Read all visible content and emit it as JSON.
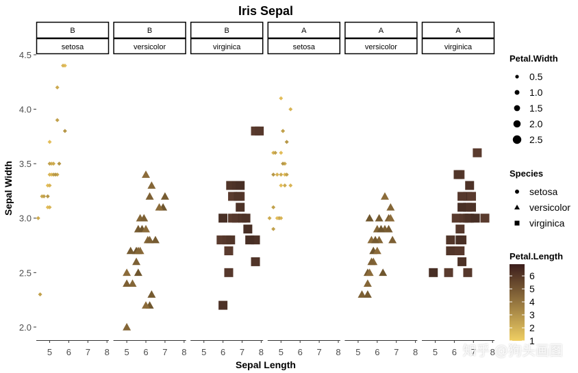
{
  "chart_data": {
    "type": "scatter",
    "title": "Iris Sepal",
    "xlabel": "Sepal Length",
    "ylabel": "Sepal Width",
    "xlim": [
      4.3,
      8.1
    ],
    "ylim": [
      1.88,
      4.5
    ],
    "x_ticks": [
      5,
      6,
      7,
      8
    ],
    "y_ticks": [
      2.0,
      2.5,
      3.0,
      3.5,
      4.0,
      4.5
    ],
    "y_tick_labels": [
      "2.0",
      "2.5",
      "3.0",
      "3.5",
      "4.0",
      "4.5"
    ],
    "facet_rows_label": [
      "B",
      "B",
      "B",
      "A",
      "A",
      "A"
    ],
    "facets": [
      {
        "group": "B",
        "species": "setosa",
        "shape": "diamond",
        "color": "#e3bd59",
        "points": [
          [
            5.8,
            4.4
          ],
          [
            5.7,
            4.4
          ],
          [
            5.4,
            4.2
          ],
          [
            5.4,
            3.9
          ],
          [
            5.8,
            3.8
          ],
          [
            5.0,
            3.7
          ],
          [
            5.1,
            3.5
          ],
          [
            5.2,
            3.5
          ],
          [
            5.0,
            3.5
          ],
          [
            5.5,
            3.5
          ],
          [
            5.1,
            3.4
          ],
          [
            5.0,
            3.4
          ],
          [
            5.4,
            3.4
          ],
          [
            5.2,
            3.4
          ],
          [
            5.3,
            3.4
          ],
          [
            4.9,
            3.3
          ],
          [
            5.0,
            3.3
          ],
          [
            4.6,
            3.2
          ],
          [
            4.7,
            3.2
          ],
          [
            4.9,
            3.2
          ],
          [
            4.9,
            3.1
          ],
          [
            5.0,
            3.1
          ],
          [
            4.4,
            3.0
          ],
          [
            4.5,
            2.3
          ]
        ]
      },
      {
        "group": "B",
        "species": "versicolor",
        "shape": "triangle",
        "color": "#8b6b3a",
        "points": [
          [
            6.0,
            3.4
          ],
          [
            6.3,
            3.3
          ],
          [
            6.2,
            3.2
          ],
          [
            7.0,
            3.2
          ],
          [
            6.9,
            3.1
          ],
          [
            6.7,
            3.1
          ],
          [
            5.7,
            3.0
          ],
          [
            5.9,
            3.0
          ],
          [
            5.6,
            2.9
          ],
          [
            5.8,
            2.9
          ],
          [
            6.0,
            2.9
          ],
          [
            6.1,
            2.8
          ],
          [
            6.2,
            2.8
          ],
          [
            6.5,
            2.8
          ],
          [
            5.5,
            2.7
          ],
          [
            5.7,
            2.7
          ],
          [
            5.6,
            2.7
          ],
          [
            5.5,
            2.6
          ],
          [
            5.2,
            2.7
          ],
          [
            5.6,
            2.5
          ],
          [
            5.0,
            2.5
          ],
          [
            5.3,
            2.4
          ],
          [
            5.0,
            2.4
          ],
          [
            6.3,
            2.3
          ],
          [
            6.2,
            2.2
          ],
          [
            6.0,
            2.2
          ],
          [
            5.0,
            2.0
          ]
        ]
      },
      {
        "group": "B",
        "species": "virginica",
        "shape": "square",
        "color": "#5a3b2e",
        "points": [
          [
            7.7,
            3.8
          ],
          [
            7.9,
            3.8
          ],
          [
            6.4,
            3.3
          ],
          [
            6.7,
            3.3
          ],
          [
            6.9,
            3.3
          ],
          [
            6.5,
            3.2
          ],
          [
            6.9,
            3.2
          ],
          [
            6.8,
            3.2
          ],
          [
            6.9,
            3.1
          ],
          [
            6.0,
            3.0
          ],
          [
            6.5,
            3.0
          ],
          [
            6.7,
            3.0
          ],
          [
            7.0,
            3.0
          ],
          [
            7.2,
            3.0
          ],
          [
            7.3,
            2.9
          ],
          [
            5.9,
            2.8
          ],
          [
            6.2,
            2.8
          ],
          [
            6.4,
            2.8
          ],
          [
            7.7,
            2.8
          ],
          [
            7.4,
            2.8
          ],
          [
            6.3,
            2.7
          ],
          [
            6.3,
            2.5
          ],
          [
            7.7,
            2.6
          ],
          [
            6.0,
            2.2
          ]
        ]
      },
      {
        "group": "A",
        "species": "setosa",
        "shape": "diamond",
        "color": "#e3bd59",
        "points": [
          [
            5.0,
            4.1
          ],
          [
            5.5,
            4.0
          ],
          [
            5.1,
            3.8
          ],
          [
            5.1,
            3.8
          ],
          [
            5.3,
            3.7
          ],
          [
            5.0,
            3.6
          ],
          [
            4.6,
            3.6
          ],
          [
            5.2,
            3.5
          ],
          [
            4.7,
            3.6
          ],
          [
            5.1,
            3.5
          ],
          [
            5.2,
            3.4
          ],
          [
            4.8,
            3.4
          ],
          [
            5.0,
            3.4
          ],
          [
            5.3,
            3.4
          ],
          [
            4.6,
            3.4
          ],
          [
            5.0,
            3.3
          ],
          [
            5.5,
            3.3
          ],
          [
            5.2,
            3.3
          ],
          [
            4.6,
            3.1
          ],
          [
            4.9,
            3.0
          ],
          [
            4.8,
            3.0
          ],
          [
            5.0,
            3.0
          ],
          [
            4.4,
            3.0
          ],
          [
            4.6,
            2.9
          ]
        ]
      },
      {
        "group": "A",
        "species": "versicolor",
        "shape": "triangle",
        "color": "#8b6b3a",
        "points": [
          [
            6.4,
            3.2
          ],
          [
            6.7,
            3.1
          ],
          [
            6.6,
            3.0
          ],
          [
            6.1,
            3.0
          ],
          [
            5.6,
            3.0
          ],
          [
            6.7,
            3.0
          ],
          [
            6.0,
            2.9
          ],
          [
            6.4,
            2.9
          ],
          [
            6.6,
            2.9
          ],
          [
            6.2,
            2.9
          ],
          [
            5.7,
            2.8
          ],
          [
            6.1,
            2.8
          ],
          [
            6.8,
            2.8
          ],
          [
            5.9,
            2.8
          ],
          [
            5.8,
            2.7
          ],
          [
            6.0,
            2.7
          ],
          [
            5.8,
            2.6
          ],
          [
            5.7,
            2.6
          ],
          [
            5.5,
            2.5
          ],
          [
            6.3,
            2.5
          ],
          [
            5.6,
            2.5
          ],
          [
            5.5,
            2.4
          ],
          [
            5.2,
            2.3
          ],
          [
            5.5,
            2.3
          ]
        ]
      },
      {
        "group": "A",
        "species": "virginica",
        "shape": "square",
        "color": "#5a3b2e",
        "points": [
          [
            7.2,
            3.6
          ],
          [
            6.3,
            3.4
          ],
          [
            6.2,
            3.4
          ],
          [
            6.8,
            3.3
          ],
          [
            6.7,
            3.2
          ],
          [
            6.9,
            3.2
          ],
          [
            6.4,
            3.2
          ],
          [
            6.7,
            3.1
          ],
          [
            6.9,
            3.1
          ],
          [
            6.4,
            3.1
          ],
          [
            6.1,
            3.0
          ],
          [
            6.5,
            3.0
          ],
          [
            6.7,
            3.0
          ],
          [
            6.8,
            3.0
          ],
          [
            7.1,
            3.0
          ],
          [
            7.6,
            3.0
          ],
          [
            6.3,
            2.9
          ],
          [
            5.8,
            2.8
          ],
          [
            6.4,
            2.8
          ],
          [
            6.3,
            2.8
          ],
          [
            6.0,
            2.7
          ],
          [
            6.3,
            2.7
          ],
          [
            5.8,
            2.7
          ],
          [
            6.4,
            2.6
          ],
          [
            4.9,
            2.5
          ],
          [
            5.7,
            2.5
          ],
          [
            6.7,
            2.5
          ]
        ]
      }
    ],
    "legend_petal_width": {
      "title": "Petal.Width",
      "labels": [
        "0.5",
        "1.0",
        "1.5",
        "2.0",
        "2.5"
      ]
    },
    "legend_species": {
      "title": "Species",
      "labels": [
        "setosa",
        "versicolor",
        "virginica"
      ]
    },
    "legend_petal_length": {
      "title": "Petal.Length",
      "labels": [
        "1",
        "2",
        "3",
        "4",
        "5",
        "6"
      ],
      "color_low": "#f0cf63",
      "color_high": "#3b1d1c"
    }
  },
  "watermark": "知乎 @狗头画图"
}
